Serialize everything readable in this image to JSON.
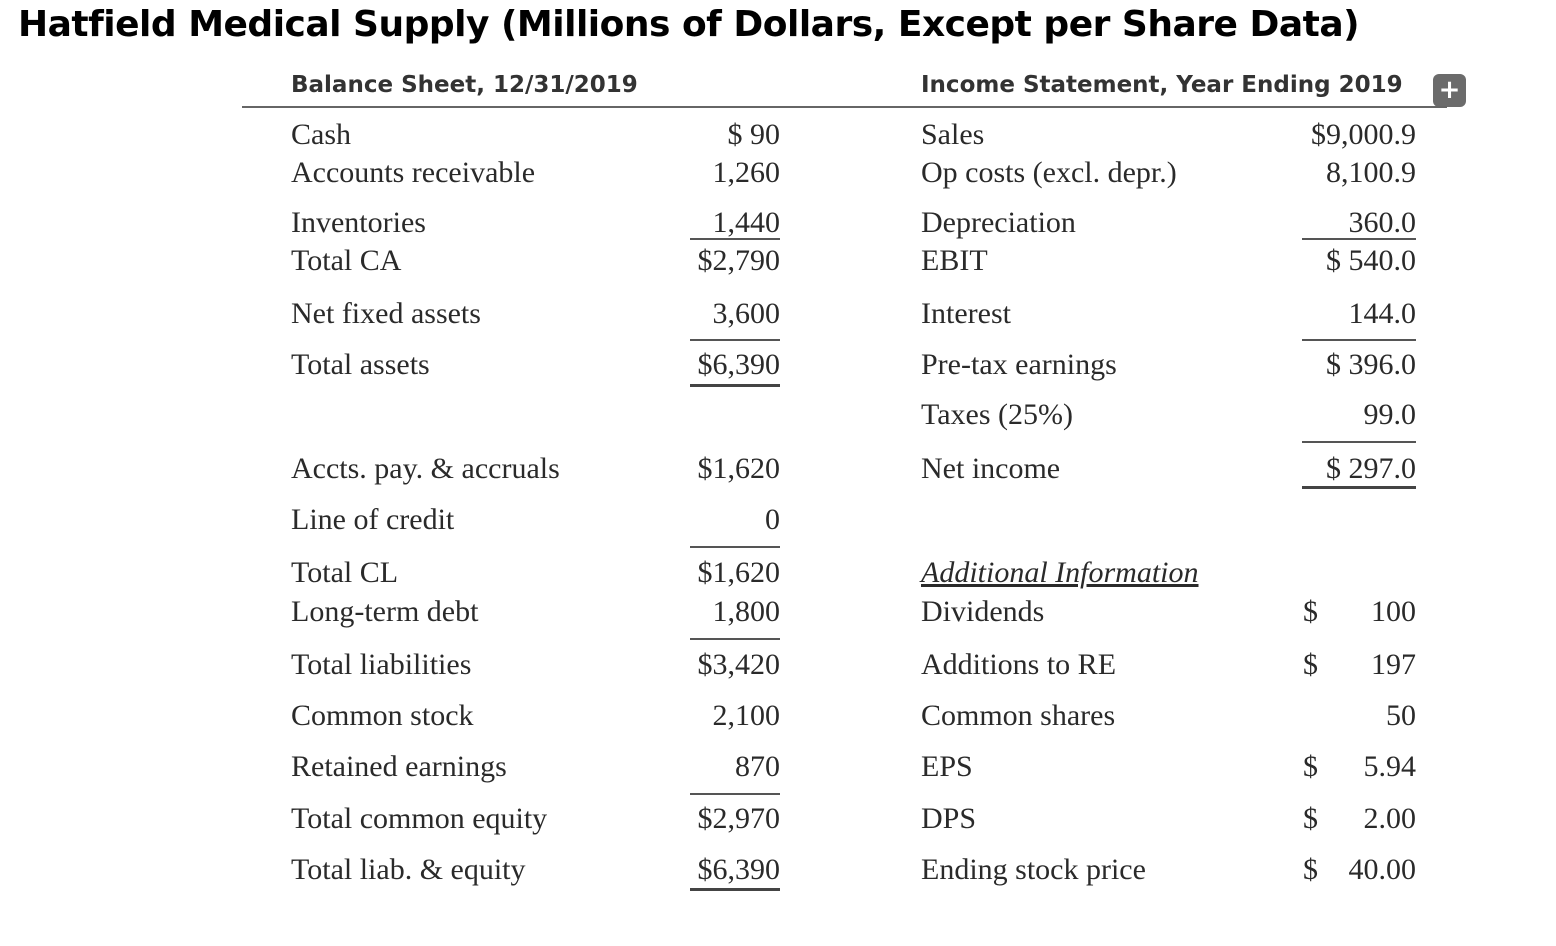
{
  "title": "Hatfield Medical Supply (Millions of Dollars, Except per Share Data)",
  "balance_sheet": {
    "header": "Balance Sheet, 12/31/2019",
    "rows": [
      {
        "label": "Cash",
        "value": "$   90"
      },
      {
        "label": "Accounts receivable",
        "value": "1,260"
      },
      {
        "label": "Inventories",
        "value": "1,440"
      },
      {
        "label": "Total CA",
        "value": "$2,790"
      },
      {
        "label": "Net fixed assets",
        "value": "3,600"
      },
      {
        "label": "Total assets",
        "value": "$6,390"
      },
      {
        "label": "Accts. pay. & accruals",
        "value": "$1,620"
      },
      {
        "label": "Line of credit",
        "value": "0"
      },
      {
        "label": "Total CL",
        "value": "$1,620"
      },
      {
        "label": "Long-term debt",
        "value": "1,800"
      },
      {
        "label": "Total liabilities",
        "value": "$3,420"
      },
      {
        "label": "Common stock",
        "value": "2,100"
      },
      {
        "label": "Retained earnings",
        "value": "870"
      },
      {
        "label": "Total common equity",
        "value": "$2,970"
      },
      {
        "label": "Total liab. & equity",
        "value": "$6,390"
      }
    ]
  },
  "income_statement": {
    "header": "Income Statement, Year Ending 2019",
    "rows": [
      {
        "label": "Sales",
        "value": "$9,000.9"
      },
      {
        "label": "Op costs (excl. depr.)",
        "value": "8,100.9"
      },
      {
        "label": "Depreciation",
        "value": "360.0"
      },
      {
        "label": "EBIT",
        "value": "$  540.0"
      },
      {
        "label": "Interest",
        "value": "144.0"
      },
      {
        "label": "Pre-tax earnings",
        "value": "$  396.0"
      },
      {
        "label": "Taxes (25%)",
        "value": "99.0"
      },
      {
        "label": "Net income",
        "value": "$  297.0"
      }
    ]
  },
  "additional_info": {
    "header": "Additional Information",
    "rows": [
      {
        "label": "Dividends",
        "dollar": "$",
        "value": "100"
      },
      {
        "label": "Additions to RE",
        "dollar": "$",
        "value": "197"
      },
      {
        "label": "Common shares",
        "dollar": "",
        "value": "50"
      },
      {
        "label": "EPS",
        "dollar": "$",
        "value": "5.94"
      },
      {
        "label": "DPS",
        "dollar": "$",
        "value": "2.00"
      },
      {
        "label": "Ending stock price",
        "dollar": "$",
        "value": "40.00"
      }
    ]
  },
  "expand_button": "+"
}
